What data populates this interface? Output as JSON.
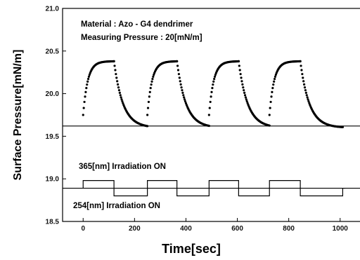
{
  "chart_data": {
    "type": "scatter",
    "title": "",
    "xlabel": "Time[sec]",
    "ylabel": "Surface Pressure[mN/m]",
    "xlim": [
      -80,
      1080
    ],
    "ylim": [
      18.5,
      21.0
    ],
    "x_ticks": [
      0,
      200,
      400,
      600,
      800,
      1000
    ],
    "x_tick_labels": [
      "0",
      "200",
      "400",
      "600",
      "800",
      "1000"
    ],
    "y_ticks": [
      18.5,
      19.0,
      19.5,
      20.0,
      20.5,
      21.0
    ],
    "y_tick_labels": [
      "18.5",
      "19.0",
      "19.5",
      "20.0",
      "20.5",
      "21.0"
    ],
    "grid": false,
    "annotations": {
      "material": "Material : Azo - G4 dendrimer",
      "pressure": "Measuring Pressure : 20[mN/m]",
      "uv365": "365[nm] Irradiation ON",
      "uv254": "254[nm] Irradiation ON"
    },
    "baseline": 19.62,
    "cycles": [
      {
        "start": 0,
        "switch": 120,
        "end": 250
      },
      {
        "start": 250,
        "switch": 365,
        "end": 490
      },
      {
        "start": 490,
        "switch": 605,
        "end": 725
      },
      {
        "start": 725,
        "switch": 845,
        "end": 1010
      }
    ],
    "series": [
      {
        "values": {
          "rise_start": 19.75,
          "plateau": 20.38,
          "fall_end": 19.6,
          "rise_tau": 18,
          "fall_tau": 35
        }
      }
    ],
    "irradiation_signal": {
      "level_365": 18.98,
      "level_mid": 18.89,
      "level_254": 18.8,
      "x_start": 0,
      "x_end": 1020
    }
  }
}
